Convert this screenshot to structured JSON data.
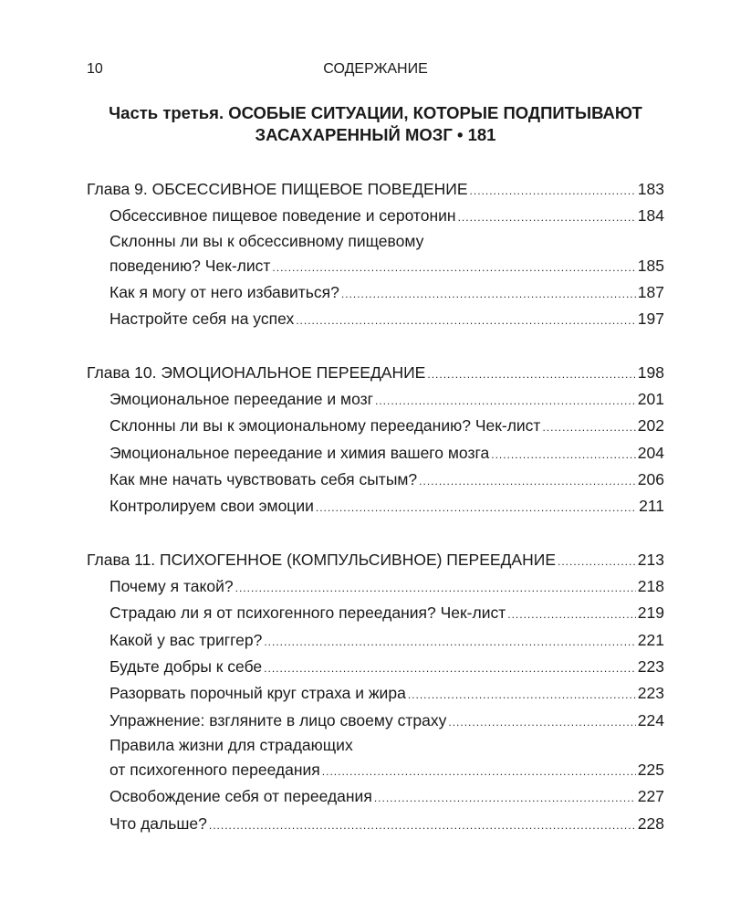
{
  "header": {
    "page_number": "10",
    "running_title": "СОДЕРЖАНИЕ"
  },
  "part": {
    "line1": "Часть третья. ОСОБЫЕ СИТУАЦИИ, КОТОРЫЕ ПОДПИТЫВАЮТ",
    "line2": "ЗАСАХАРЕННЫЙ МОЗГ • 181"
  },
  "chapters": [
    {
      "title": "Глава 9. ОБСЕССИВНОЕ ПИЩЕВОЕ ПОВЕДЕНИЕ",
      "page": "183",
      "entries": [
        {
          "lines": [
            "Обсессивное пищевое поведение и серотонин"
          ],
          "page": "184"
        },
        {
          "lines": [
            "Склонны ли вы к обсессивному пищевому",
            "поведению? Чек-лист"
          ],
          "page": "185"
        },
        {
          "lines": [
            "Как я могу от него избавиться?"
          ],
          "page": "187"
        },
        {
          "lines": [
            "Настройте себя на успех"
          ],
          "page": "197"
        }
      ]
    },
    {
      "title": "Глава 10. ЭМОЦИОНАЛЬНОЕ ПЕРЕЕДАНИЕ",
      "page": "198",
      "entries": [
        {
          "lines": [
            "Эмоциональное переедание и мозг"
          ],
          "page": "201"
        },
        {
          "lines": [
            "Склонны ли вы к эмоциональному перееданию? Чек-лист"
          ],
          "page": "202"
        },
        {
          "lines": [
            "Эмоциональное переедание и химия вашего мозга"
          ],
          "page": "204"
        },
        {
          "lines": [
            "Как мне начать чувствовать себя сытым?"
          ],
          "page": "206"
        },
        {
          "lines": [
            "Контролируем свои эмоции"
          ],
          "page": "211"
        }
      ]
    },
    {
      "title": "Глава 11. ПСИХОГЕННОЕ (КОМПУЛЬСИВНОЕ) ПЕРЕЕДАНИЕ",
      "page": "213",
      "entries": [
        {
          "lines": [
            "Почему я такой?"
          ],
          "page": "218"
        },
        {
          "lines": [
            "Страдаю ли я от психогенного переедания? Чек-лист"
          ],
          "page": "219"
        },
        {
          "lines": [
            "Какой у вас триггер?"
          ],
          "page": "221"
        },
        {
          "lines": [
            "Будьте добры к себе"
          ],
          "page": "223"
        },
        {
          "lines": [
            "Разорвать порочный круг страха и жира"
          ],
          "page": "223"
        },
        {
          "lines": [
            "Упражнение: взгляните в лицо своему страху"
          ],
          "page": "224"
        },
        {
          "lines": [
            "Правила жизни для страдающих",
            "от психогенного переедания"
          ],
          "page": "225"
        },
        {
          "lines": [
            "Освобождение себя от переедания"
          ],
          "page": "227"
        },
        {
          "lines": [
            "Что дальше?"
          ],
          "page": "228"
        }
      ]
    }
  ]
}
